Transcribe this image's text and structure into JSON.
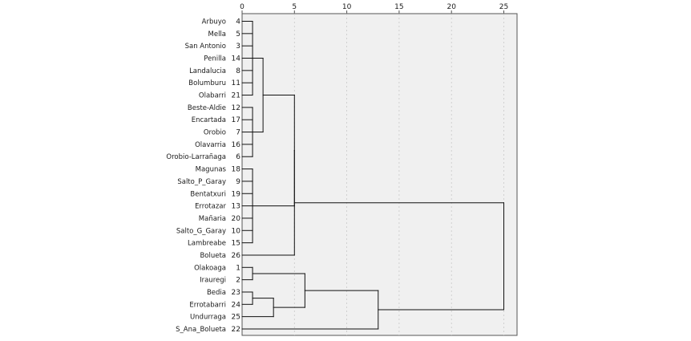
{
  "chart_data": {
    "type": "dendrogram",
    "x_ticks": [
      0,
      5,
      10,
      15,
      20,
      25
    ],
    "xlim": [
      0,
      26
    ],
    "grid": true,
    "leaves": [
      {
        "name": "Arbuyo",
        "id": "4"
      },
      {
        "name": "Mella",
        "id": "5"
      },
      {
        "name": "San Antonio",
        "id": "3"
      },
      {
        "name": "Penilla",
        "id": "14"
      },
      {
        "name": "Landalucia",
        "id": "8"
      },
      {
        "name": "Bolumburu",
        "id": "11"
      },
      {
        "name": "Olabarri",
        "id": "21"
      },
      {
        "name": "Beste-Aldie",
        "id": "12"
      },
      {
        "name": "Encartada",
        "id": "17"
      },
      {
        "name": "Orobio",
        "id": "7"
      },
      {
        "name": "Olavarria",
        "id": "16"
      },
      {
        "name": "Orobio-Larrañaga",
        "id": "6"
      },
      {
        "name": "Magunas",
        "id": "18"
      },
      {
        "name": "Salto_P_Garay",
        "id": "9"
      },
      {
        "name": "Bentatxuri",
        "id": "19"
      },
      {
        "name": "Errotazar",
        "id": "13"
      },
      {
        "name": "Mañaria",
        "id": "20"
      },
      {
        "name": "Salto_G_Garay",
        "id": "10"
      },
      {
        "name": "Lambreabe",
        "id": "15"
      },
      {
        "name": "Bolueta",
        "id": "26"
      },
      {
        "name": "Olakoaga",
        "id": "1"
      },
      {
        "name": "Irauregi",
        "id": "2"
      },
      {
        "name": "Bedia",
        "id": "23"
      },
      {
        "name": "Errotabarri",
        "id": "24"
      },
      {
        "name": "Undurraga",
        "id": "25"
      },
      {
        "name": "S_Ana_Bolueta",
        "id": "22"
      }
    ],
    "merges": [
      {
        "leaves": [
          0,
          1,
          2,
          3,
          4,
          5,
          6
        ],
        "height": 1
      },
      {
        "leaves": [
          7,
          8,
          9,
          10,
          11
        ],
        "height": 1
      },
      {
        "left": "0-6",
        "right": "7-11",
        "height": 2
      },
      {
        "leaves": [
          12,
          13,
          14,
          15,
          16,
          17,
          18
        ],
        "height": 1
      },
      {
        "left": "0-11",
        "right": "12-18",
        "height": 5
      },
      {
        "left": "0-18",
        "right": "19",
        "height": 5
      },
      {
        "leaves": [
          20,
          21
        ],
        "height": 1
      },
      {
        "leaves": [
          22,
          23
        ],
        "height": 1
      },
      {
        "left": "22-23",
        "right": "24",
        "height": 3
      },
      {
        "left": "20-21",
        "right": "22-24",
        "height": 6
      },
      {
        "left": "20-24",
        "right": "25",
        "height": 13
      },
      {
        "left": "0-19",
        "right": "20-25",
        "height": 25
      }
    ]
  }
}
